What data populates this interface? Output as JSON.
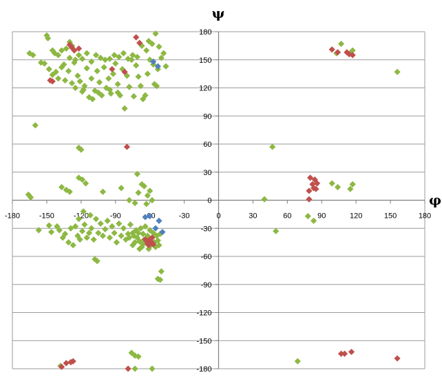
{
  "chart_data": {
    "type": "scatter",
    "title": "",
    "xlabel": "φ",
    "ylabel": "ψ",
    "xlim": [
      -180,
      180
    ],
    "ylim": [
      -180,
      180
    ],
    "x_ticks": [
      -180,
      -150,
      -120,
      -90,
      -60,
      -30,
      0,
      30,
      60,
      90,
      120,
      150,
      180
    ],
    "y_ticks": [
      180,
      150,
      120,
      90,
      60,
      30,
      0,
      -30,
      -60,
      -90,
      -120,
      -150,
      -180
    ],
    "x_tick_labels": [
      "-180",
      "-150",
      "-120",
      "-90",
      "-60",
      "-30",
      "0",
      "30",
      "60",
      "90",
      "120",
      "150",
      "180"
    ],
    "y_tick_labels": [
      "180",
      "150",
      "120",
      "90",
      "60",
      "30",
      "0",
      "-30",
      "-60",
      "-90",
      "-120",
      "-150",
      "-180"
    ],
    "grid": "horizontal",
    "legend": "none",
    "series": [
      {
        "color": "#8db843",
        "points": [
          [
            -150,
            176
          ],
          [
            -149,
            173
          ],
          [
            -145,
            160
          ],
          [
            -143,
            157
          ],
          [
            -140,
            155
          ],
          [
            -137,
            160
          ],
          [
            -133,
            162
          ],
          [
            -130,
            169
          ],
          [
            -128,
            165
          ],
          [
            -125,
            150
          ],
          [
            -122,
            155
          ],
          [
            -119,
            151
          ],
          [
            -115,
            157
          ],
          [
            -111,
            148
          ],
          [
            -107,
            155
          ],
          [
            -103,
            152
          ],
          [
            -99,
            150
          ],
          [
            -95,
            151
          ],
          [
            -91,
            155
          ],
          [
            -87,
            153
          ],
          [
            -83,
            157
          ],
          [
            -79,
            151
          ],
          [
            -75,
            155
          ],
          [
            -71,
            153
          ],
          [
            -67,
            165
          ],
          [
            -63,
            160
          ],
          [
            -61,
            170
          ],
          [
            -58,
            167
          ],
          [
            -55,
            178
          ],
          [
            -52,
            164
          ],
          [
            -50,
            152
          ],
          [
            -48,
            157
          ],
          [
            -46,
            143
          ],
          [
            -60,
            150
          ],
          [
            -165,
            157
          ],
          [
            -162,
            155
          ],
          [
            -155,
            147
          ],
          [
            -152,
            146
          ],
          [
            -148,
            140
          ],
          [
            -145,
            134
          ],
          [
            -142,
            137
          ],
          [
            -140,
            130
          ],
          [
            -137,
            142
          ],
          [
            -134,
            128
          ],
          [
            -131,
            138
          ],
          [
            -128,
            125
          ],
          [
            -126,
            147
          ],
          [
            -123,
            133
          ],
          [
            -121,
            127
          ],
          [
            -119,
            116
          ],
          [
            -117,
            122
          ],
          [
            -115,
            141
          ],
          [
            -113,
            110
          ],
          [
            -111,
            130
          ],
          [
            -110,
            108
          ],
          [
            -108,
            117
          ],
          [
            -106,
            138
          ],
          [
            -104,
            126
          ],
          [
            -102,
            112
          ],
          [
            -100,
            142
          ],
          [
            -98,
            120
          ],
          [
            -96,
            130
          ],
          [
            -94,
            114
          ],
          [
            -92,
            135
          ],
          [
            -90,
            146
          ],
          [
            -88,
            124
          ],
          [
            -86,
            112
          ],
          [
            -84,
            140
          ],
          [
            -82,
            98
          ],
          [
            -80,
            133
          ],
          [
            -78,
            121
          ],
          [
            -76,
            150
          ],
          [
            -74,
            111
          ],
          [
            -72,
            144
          ],
          [
            -70,
            132
          ],
          [
            -68,
            122
          ],
          [
            -66,
            108
          ],
          [
            -64,
            112
          ],
          [
            -62,
            135
          ],
          [
            -56,
            124
          ],
          [
            -54,
            122
          ],
          [
            -53,
            140
          ],
          [
            -57,
            145
          ],
          [
            -125,
            120
          ],
          [
            -118,
            118
          ],
          [
            -105,
            115
          ],
          [
            -95,
            118
          ],
          [
            -88,
            115
          ],
          [
            -135,
            145
          ],
          [
            -130,
            152
          ],
          [
            -160,
            80
          ],
          [
            -122,
            56
          ],
          [
            -120,
            54
          ],
          [
            -166,
            6
          ],
          [
            -164,
            3
          ],
          [
            -137,
            14
          ],
          [
            -133,
            11
          ],
          [
            -130,
            9
          ],
          [
            -122,
            24
          ],
          [
            -119,
            22
          ],
          [
            -116,
            18
          ],
          [
            -101,
            9
          ],
          [
            -85,
            13
          ],
          [
            -78,
            0
          ],
          [
            -73,
            -3
          ],
          [
            -71,
            28
          ],
          [
            -70,
            8
          ],
          [
            -67,
            17
          ],
          [
            -65,
            15
          ],
          [
            -63,
            -4
          ],
          [
            -62,
            5
          ],
          [
            -60,
            10
          ],
          [
            -58,
            0
          ],
          [
            -157,
            -32
          ],
          [
            -148,
            -27
          ],
          [
            -146,
            -34
          ],
          [
            -141,
            -28
          ],
          [
            -139,
            -32
          ],
          [
            -136,
            -40
          ],
          [
            -134,
            -36
          ],
          [
            -131,
            -45
          ],
          [
            -129,
            -30
          ],
          [
            -127,
            -48
          ],
          [
            -125,
            -28
          ],
          [
            -123,
            -38
          ],
          [
            -121,
            -42
          ],
          [
            -119,
            -33
          ],
          [
            -117,
            -26
          ],
          [
            -115,
            -40
          ],
          [
            -113,
            -35
          ],
          [
            -111,
            -30
          ],
          [
            -109,
            -42
          ],
          [
            -107,
            -20
          ],
          [
            -105,
            -35
          ],
          [
            -103,
            -25
          ],
          [
            -101,
            -38
          ],
          [
            -99,
            -31
          ],
          [
            -97,
            -22
          ],
          [
            -95,
            -40
          ],
          [
            -93,
            -28
          ],
          [
            -91,
            -35
          ],
          [
            -89,
            -45
          ],
          [
            -87,
            -25
          ],
          [
            -85,
            -38
          ],
          [
            -83,
            -30
          ],
          [
            -81,
            -42
          ],
          [
            -79,
            -36
          ],
          [
            -77,
            -26
          ],
          [
            -75,
            -48
          ],
          [
            -74,
            -38
          ],
          [
            -72,
            -32
          ],
          [
            -71,
            -40
          ],
          [
            -70,
            -35
          ],
          [
            -69,
            -44
          ],
          [
            -68,
            -30
          ],
          [
            -67,
            -50
          ],
          [
            -66,
            -36
          ],
          [
            -65,
            -42
          ],
          [
            -64,
            -28
          ],
          [
            -63,
            -46
          ],
          [
            -62,
            -38
          ],
          [
            -61,
            -52
          ],
          [
            -60,
            -32
          ],
          [
            -59,
            -48
          ],
          [
            -58,
            -40
          ],
          [
            -57,
            -35
          ],
          [
            -56,
            -45
          ],
          [
            -55,
            -50
          ],
          [
            -54,
            -38
          ],
          [
            -53,
            -43
          ],
          [
            -52,
            -48
          ],
          [
            -51,
            -36
          ],
          [
            -73,
            -45
          ],
          [
            -69,
            -52
          ],
          [
            -66,
            -47
          ],
          [
            -75,
            -35
          ],
          [
            -78,
            -40
          ],
          [
            -106,
            -65
          ],
          [
            -108,
            -63
          ],
          [
            -50,
            -76
          ],
          [
            -53,
            -84
          ],
          [
            -51,
            -85
          ],
          [
            -112,
            -16
          ],
          [
            -118,
            -12
          ],
          [
            -122,
            -20
          ],
          [
            -138,
            -177
          ],
          [
            -76,
            -163
          ],
          [
            -73,
            -166
          ],
          [
            -70,
            -167
          ],
          [
            -73,
            -180
          ],
          [
            -58,
            -180
          ],
          [
            47,
            57
          ],
          [
            40,
            1
          ],
          [
            99,
            18
          ],
          [
            104,
            14
          ],
          [
            115,
            12
          ],
          [
            117,
            17
          ],
          [
            78,
            -17
          ],
          [
            83,
            -22
          ],
          [
            50,
            -33
          ],
          [
            103,
            157
          ],
          [
            107,
            167
          ],
          [
            117,
            160
          ],
          [
            115,
            157
          ],
          [
            156,
            137
          ],
          [
            69,
            -172
          ]
        ]
      },
      {
        "color": "#c0504d",
        "points": [
          [
            -130,
            166
          ],
          [
            -128,
            163
          ],
          [
            -126,
            160
          ],
          [
            -122,
            162
          ],
          [
            -147,
            128
          ],
          [
            -145,
            127
          ],
          [
            -93,
            140
          ],
          [
            -82,
            137
          ],
          [
            -72,
            174
          ],
          [
            -69,
            168
          ],
          [
            -80,
            57
          ],
          [
            -64,
            -42
          ],
          [
            -62,
            -46
          ],
          [
            -60,
            -45
          ],
          [
            -58,
            -40
          ],
          [
            -61,
            -48
          ],
          [
            -59,
            -44
          ],
          [
            -57,
            -47
          ],
          [
            -60,
            -42
          ],
          [
            -137,
            -178
          ],
          [
            -133,
            -174
          ],
          [
            -129,
            -173
          ],
          [
            -127,
            -172
          ],
          [
            -79,
            -180
          ],
          [
            80,
            24
          ],
          [
            82,
            17
          ],
          [
            84,
            22
          ],
          [
            83,
            13
          ],
          [
            85,
            12
          ],
          [
            86,
            18
          ],
          [
            79,
            10
          ],
          [
            79,
            1
          ],
          [
            99,
            161
          ],
          [
            104,
            158
          ],
          [
            112,
            158
          ],
          [
            114,
            156
          ],
          [
            117,
            155
          ],
          [
            107,
            -164
          ],
          [
            110,
            -164
          ],
          [
            116,
            -162
          ],
          [
            156,
            -169
          ]
        ]
      },
      {
        "color": "#4f81bd",
        "points": [
          [
            -57,
            148
          ],
          [
            -53,
            143
          ],
          [
            -64,
            -18
          ],
          [
            -60,
            -17
          ],
          [
            -55,
            -30
          ],
          [
            -52,
            -22
          ],
          [
            -49,
            -34
          ]
        ]
      }
    ]
  }
}
